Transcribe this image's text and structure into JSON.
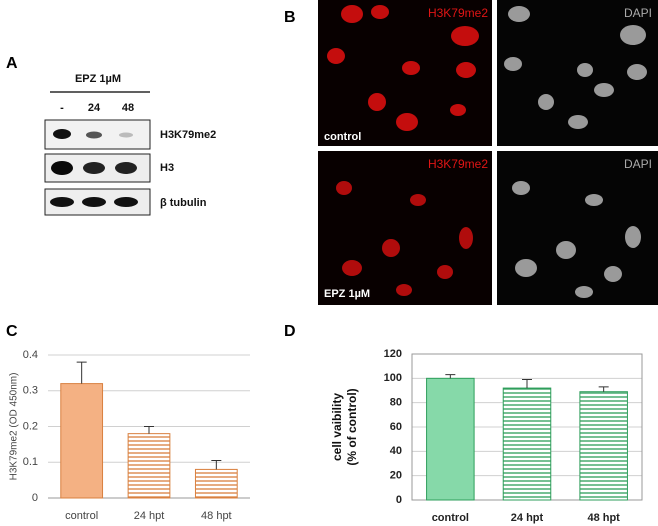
{
  "panels": {
    "a": "A",
    "b": "B",
    "c": "C",
    "d": "D"
  },
  "blot": {
    "treatment": "EPZ 1µM",
    "lanes": [
      "-",
      "24",
      "48"
    ],
    "bands": [
      "H3K79me2",
      "H3",
      "β tubulin"
    ]
  },
  "micrographs": {
    "stains": [
      "H3K79me2",
      "DAPI"
    ],
    "conditions": [
      "control",
      "EPZ 1µM"
    ]
  },
  "chart_data": [
    {
      "type": "bar",
      "ylabel": "H3K79me2 (OD 450nm)",
      "categories": [
        "control",
        "24 hpt",
        "48 hpt"
      ],
      "values": [
        0.32,
        0.18,
        0.08
      ],
      "errors": [
        0.06,
        0.02,
        0.025
      ],
      "color": "#f4b183",
      "edge_color": "#d9803f",
      "fills": [
        "solid",
        "stripes",
        "stripes"
      ],
      "ylim": [
        0,
        0.4
      ],
      "yticks": [
        0,
        0.1,
        0.2,
        0.3,
        0.4
      ],
      "grid": true,
      "frame": false
    },
    {
      "type": "bar",
      "ylabel": [
        "cell vaibility",
        "(% of control)"
      ],
      "categories": [
        "control",
        "24 hpt",
        "48 hpt"
      ],
      "values": [
        100,
        92,
        89
      ],
      "errors": [
        3,
        7,
        4
      ],
      "color": "#86d9a9",
      "edge_color": "#2e9e5b",
      "fills": [
        "solid",
        "stripes",
        "stripes"
      ],
      "ylim": [
        0,
        120
      ],
      "yticks": [
        0,
        20,
        40,
        60,
        80,
        100,
        120
      ],
      "grid": true,
      "frame": true
    }
  ]
}
